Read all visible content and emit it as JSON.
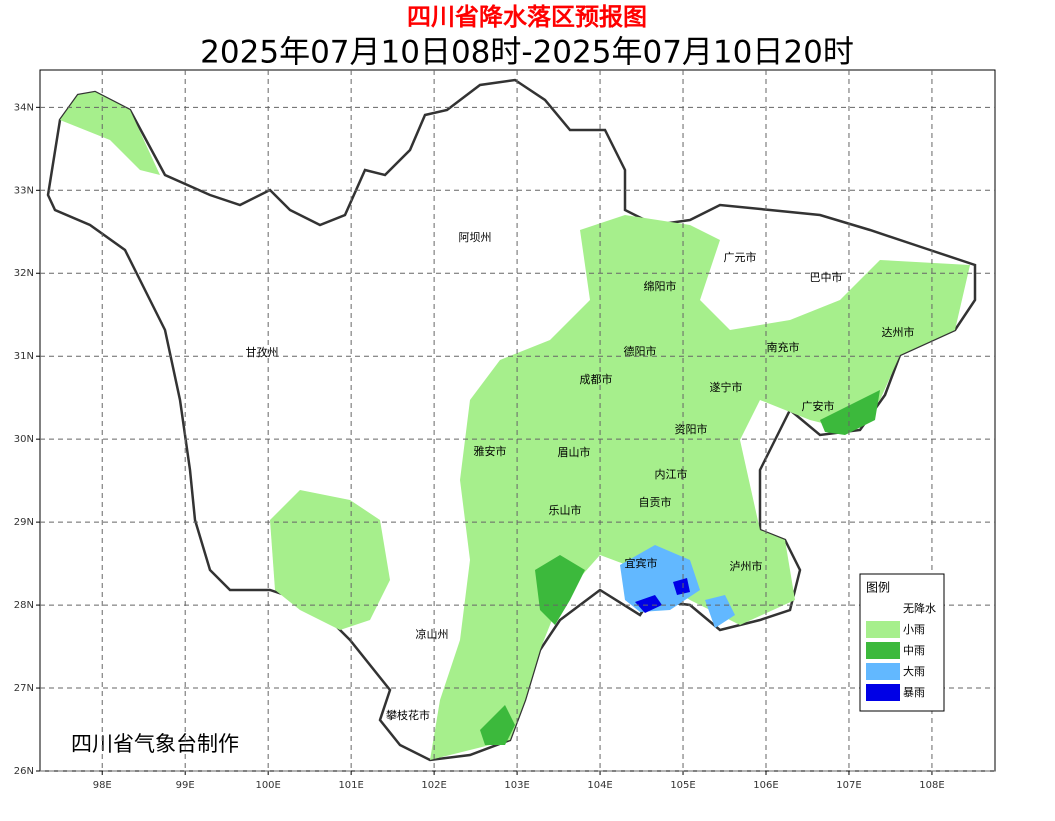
{
  "map": {
    "title": "四川省降水落区预报图",
    "subtitle": "2025年07月10日08时-2025年07月10日20时",
    "credit": "四川省气象台制作",
    "xlim": [
      97.25,
      108.76
    ],
    "ylim": [
      26,
      34.45
    ],
    "xticks": [
      {
        "value": 98,
        "label": "98E"
      },
      {
        "value": 99,
        "label": "99E"
      },
      {
        "value": 100,
        "label": "100E"
      },
      {
        "value": 101,
        "label": "101E"
      },
      {
        "value": 102,
        "label": "102E"
      },
      {
        "value": 103,
        "label": "103E"
      },
      {
        "value": 104,
        "label": "104E"
      },
      {
        "value": 105,
        "label": "105E"
      },
      {
        "value": 106,
        "label": "106E"
      },
      {
        "value": 107,
        "label": "107E"
      },
      {
        "value": 108,
        "label": "108E"
      }
    ],
    "yticks": [
      {
        "value": 26,
        "label": "26N"
      },
      {
        "value": 27,
        "label": "27N"
      },
      {
        "value": 28,
        "label": "28N"
      },
      {
        "value": 29,
        "label": "29N"
      },
      {
        "value": 30,
        "label": "30N"
      },
      {
        "value": 31,
        "label": "31N"
      },
      {
        "value": 32,
        "label": "32N"
      },
      {
        "value": 33,
        "label": "33N"
      },
      {
        "value": 34,
        "label": "34N"
      }
    ],
    "grid": true,
    "cities": [
      "阿坝州",
      "广元市",
      "巴中市",
      "绵阳市",
      "达州市",
      "甘孜州",
      "德阳市",
      "南充市",
      "成都市",
      "遂宁市",
      "广安市",
      "资阳市",
      "雅安市",
      "眉山市",
      "内江市",
      "自贡市",
      "乐山市",
      "宜宾市",
      "泸州市",
      "凉山州",
      "攀枝花市"
    ],
    "legend": {
      "title": "图例",
      "items": [
        {
          "label": "无降水",
          "color": "#ffffff"
        },
        {
          "label": "小雨",
          "color": "#a6ef8c"
        },
        {
          "label": "中雨",
          "color": "#3cb93c"
        },
        {
          "label": "大雨",
          "color": "#62b8ff"
        },
        {
          "label": "暴雨",
          "color": "#0000e6"
        }
      ]
    }
  }
}
